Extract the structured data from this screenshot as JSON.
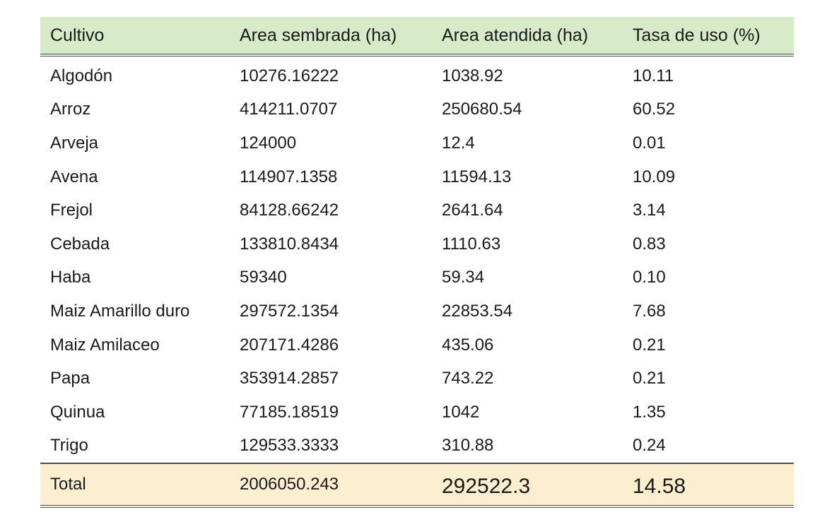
{
  "table": {
    "headers": [
      "Cultivo",
      "Area sembrada (ha)",
      "Area atendida (ha)",
      "Tasa de uso (%)"
    ],
    "rows": [
      [
        "Algodón",
        "10276.16222",
        "1038.92",
        "10.11"
      ],
      [
        "Arroz",
        "414211.0707",
        "250680.54",
        "60.52"
      ],
      [
        "Arveja",
        "124000",
        "12.4",
        "0.01"
      ],
      [
        "Avena",
        "114907.1358",
        "11594.13",
        "10.09"
      ],
      [
        "Frejol",
        "84128.66242",
        "2641.64",
        "3.14"
      ],
      [
        "Cebada",
        "133810.8434",
        "1110.63",
        "0.83"
      ],
      [
        "Haba",
        "59340",
        "59.34",
        "0.10"
      ],
      [
        "Maiz Amarillo duro",
        "297572.1354",
        "22853.54",
        "7.68"
      ],
      [
        "Maiz Amilaceo",
        "207171.4286",
        "435.06",
        "0.21"
      ],
      [
        "Papa",
        "353914.2857",
        "743.22",
        "0.21"
      ],
      [
        "Quinua",
        "77185.18519",
        "1042",
        "1.35"
      ],
      [
        "Trigo",
        "129533.3333",
        "310.88",
        "0.24"
      ]
    ],
    "total": [
      "Total",
      "2006050.243",
      "292522.3",
      "14.58"
    ],
    "colors": {
      "header_bg": "#d8ebc8",
      "total_bg": "#fcefcf",
      "rule": "#4d4d4d"
    }
  }
}
